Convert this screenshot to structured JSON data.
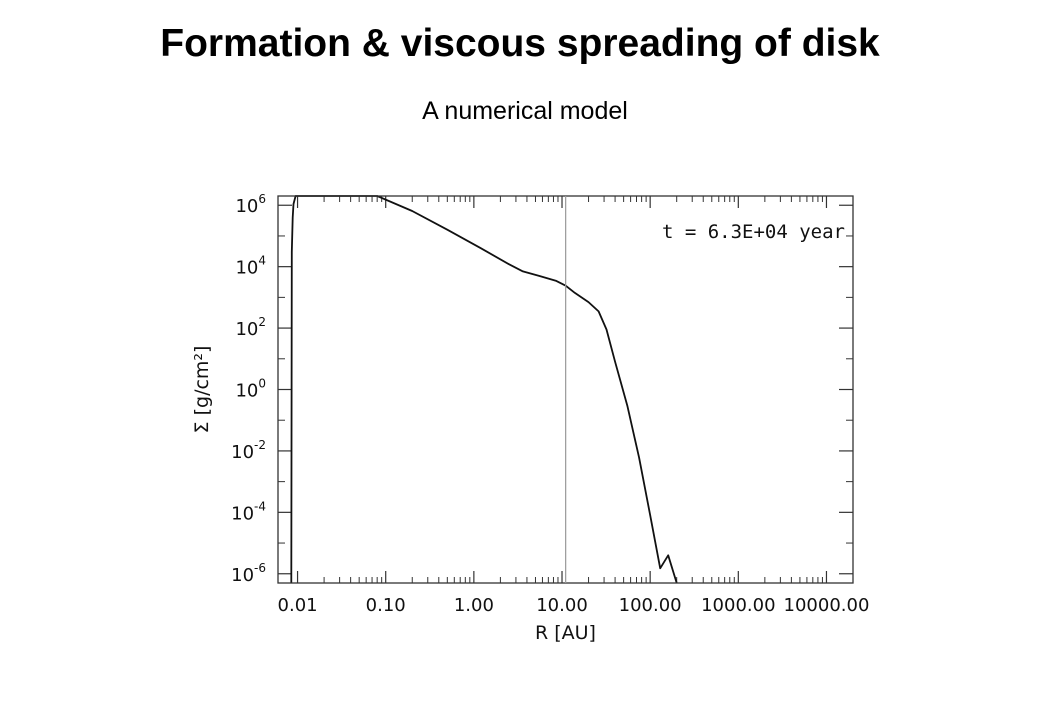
{
  "title": "Formation & viscous spreading of disk",
  "subtitle": "A numerical model",
  "chart_data": {
    "type": "line",
    "xscale": "log",
    "yscale": "log",
    "xlabel": "R [AU]",
    "ylabel": "Σ [g/cm²]",
    "xlim": [
      0.006,
      20000
    ],
    "ylim": [
      5e-07,
      2000000.0
    ],
    "x_tick_labels": [
      "0.01",
      "0.10",
      "1.00",
      "10.00",
      "100.00",
      "1000.00",
      "10000.00"
    ],
    "x_tick_values": [
      0.01,
      0.1,
      1,
      10,
      100,
      1000,
      10000
    ],
    "y_tick_values": [
      1000000.0,
      10000.0,
      100.0,
      1,
      0.01,
      0.0001,
      1e-06
    ],
    "y_tick_labels": [
      {
        "base": "10",
        "exp": "6"
      },
      {
        "base": "10",
        "exp": "4"
      },
      {
        "base": "10",
        "exp": "2"
      },
      {
        "base": "10",
        "exp": "0"
      },
      {
        "base": "10",
        "exp": "-2"
      },
      {
        "base": "10",
        "exp": "-4"
      },
      {
        "base": "10",
        "exp": "-6"
      }
    ],
    "annotation": "t = 6.3E+04 year",
    "vertical_line_x": 11,
    "grid": false,
    "series": [
      {
        "x": [
          0.0085,
          0.0086,
          0.0088,
          0.009,
          0.0095,
          0.0105,
          0.012,
          0.015,
          0.02,
          0.03,
          0.05,
          0.08,
          0.2,
          0.5,
          1.2,
          2.5,
          3.6,
          5.5,
          8.5,
          11,
          14,
          20,
          26,
          32,
          40,
          55,
          75,
          100,
          130,
          160,
          200
        ],
        "y": [
          5e-07,
          30000.0,
          400000.0,
          1100000.0,
          2200000.0,
          2800000.0,
          3200000.0,
          3500000.0,
          3600000.0,
          3400000.0,
          3000000.0,
          2500000.0,
          650000.0,
          160000.0,
          40000.0,
          12000.0,
          7000.0,
          5000.0,
          3500.0,
          2400.0,
          1400.0,
          700.0,
          350.0,
          90,
          8,
          0.3,
          0.006,
          8e-05,
          1.5e-06,
          4e-06,
          5e-07
        ]
      }
    ]
  }
}
